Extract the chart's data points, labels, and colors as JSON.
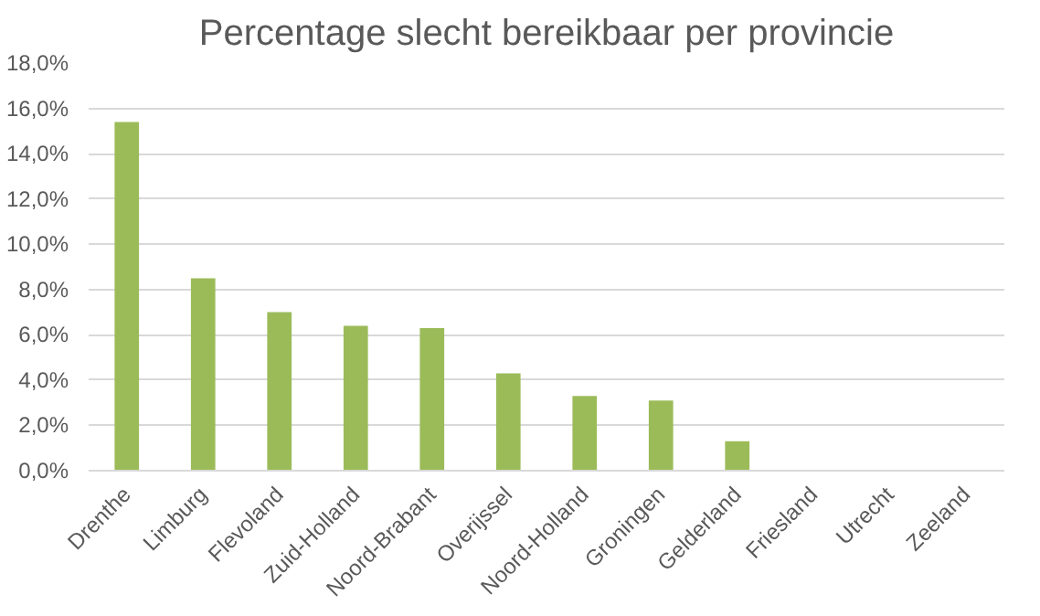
{
  "chart_data": {
    "type": "bar",
    "title": "Percentage slecht bereikbaar per provincie",
    "categories": [
      "Drenthe",
      "Limburg",
      "Flevoland",
      "Zuid-Holland",
      "Noord-Brabant",
      "Overijssel",
      "Noord-Holland",
      "Groningen",
      "Gelderland",
      "Friesland",
      "Utrecht",
      "Zeeland"
    ],
    "values": [
      15.4,
      8.5,
      7.0,
      6.4,
      6.3,
      4.3,
      3.3,
      3.1,
      1.3,
      0,
      0,
      0
    ],
    "color": "#9bbb59",
    "ylim": [
      0,
      18
    ],
    "yticks": [
      {
        "value": 0,
        "label": "0,0%"
      },
      {
        "value": 2,
        "label": "2,0%"
      },
      {
        "value": 4,
        "label": "4,0%"
      },
      {
        "value": 6,
        "label": "6,0%"
      },
      {
        "value": 8,
        "label": "8,0%"
      },
      {
        "value": 10,
        "label": "10,0%"
      },
      {
        "value": 12,
        "label": "12,0%"
      },
      {
        "value": 14,
        "label": "14,0%"
      },
      {
        "value": 16,
        "label": "16,0%"
      },
      {
        "value": 18,
        "label": "18,0%"
      }
    ],
    "grid": "y"
  }
}
